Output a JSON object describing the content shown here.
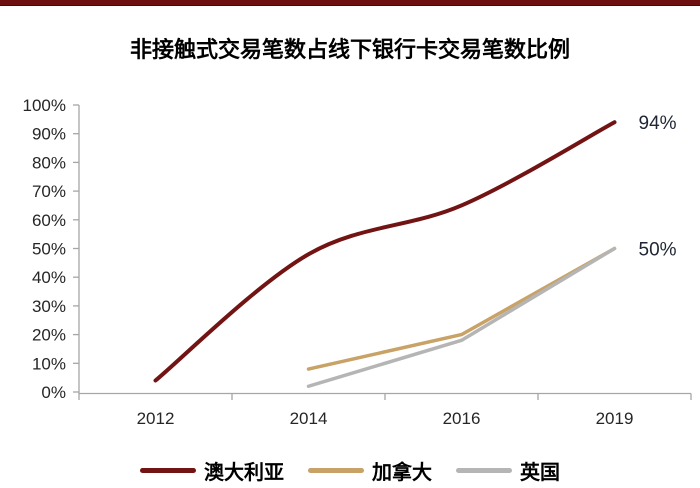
{
  "window": {
    "top_bar_color": "#6E1010"
  },
  "chart_data": {
    "type": "line",
    "title": "非接触式交易笔数占线下银行卡交易笔数比例",
    "categories": [
      "2012",
      "2014",
      "2016",
      "2019"
    ],
    "series": [
      {
        "name": "澳大利亚",
        "color": "#731414",
        "smooth": true,
        "stroke_width": 4,
        "values": [
          4,
          48,
          65,
          94
        ],
        "end_label": "94%"
      },
      {
        "name": "加拿大",
        "color": "#C8A266",
        "smooth": false,
        "stroke_width": 3.5,
        "values": [
          null,
          8,
          20,
          50
        ],
        "end_label": "50%"
      },
      {
        "name": "英国",
        "color": "#B5B5B5",
        "smooth": false,
        "stroke_width": 3.5,
        "values": [
          null,
          2,
          18,
          50
        ],
        "end_label": ""
      }
    ],
    "xlabel": "",
    "ylabel": "",
    "ylim": [
      0,
      100
    ],
    "ytick_step": 10,
    "ytick_labels": [
      "0%",
      "10%",
      "20%",
      "30%",
      "40%",
      "50%",
      "60%",
      "70%",
      "80%",
      "90%",
      "100%"
    ],
    "grid": false,
    "legend_position": "bottom",
    "axis_color": "#A6A6A6",
    "tick_label_color": "#262626",
    "end_label_color": "#1F2533"
  }
}
